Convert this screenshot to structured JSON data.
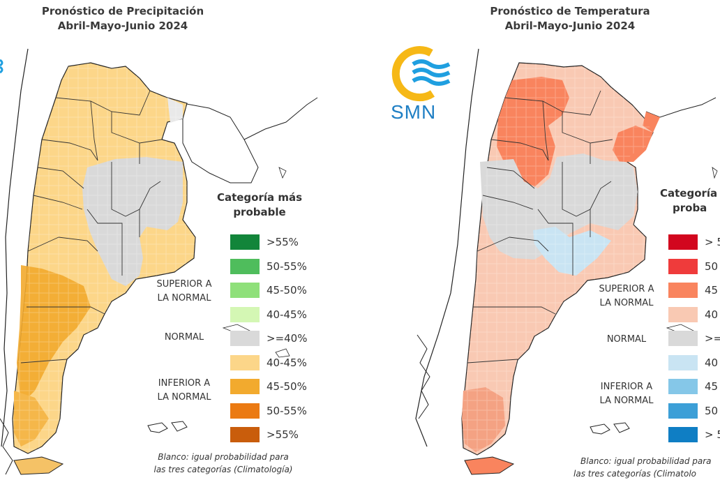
{
  "precipitation": {
    "title_line1": "Pronóstico de Precipitación",
    "title_line2": "Abril-Mayo-Junio 2024",
    "legend": {
      "heading_line1": "Categoría más",
      "heading_line2": "probable",
      "items": [
        {
          "label": ">55%",
          "color": "#12853a"
        },
        {
          "label": "50-55%",
          "color": "#4fbd5c"
        },
        {
          "label": "45-50%",
          "color": "#8fe07a"
        },
        {
          "label": "40-45%",
          "color": "#d4f7b4"
        },
        {
          "label": ">=40%",
          "color": "#d9d9d9"
        },
        {
          "label": "40-45%",
          "color": "#fcd689"
        },
        {
          "label": "45-50%",
          "color": "#f2aa2e"
        },
        {
          "label": "50-55%",
          "color": "#eb7a12"
        },
        {
          "label": ">55%",
          "color": "#c95d0c"
        }
      ],
      "above_line1": "SUPERIOR A",
      "above_line2": "LA NORMAL",
      "normal": "NORMAL",
      "below_line1": "INFERIOR A",
      "below_line2": "LA NORMAL"
    },
    "note_line1": "Blanco: igual probabilidad para",
    "note_line2": "las tres categorías (Climatología)"
  },
  "temperature": {
    "title_line1": "Pronóstico de Temperatura",
    "title_line2": "Abril-Mayo-Junio 2024",
    "logo_text": "SMN",
    "legend": {
      "heading_line1": "Categoría",
      "heading_line2": "proba",
      "items": [
        {
          "label": "> 5",
          "color": "#d2061e"
        },
        {
          "label": "50",
          "color": "#ef3b3b"
        },
        {
          "label": "45",
          "color": "#f9845e"
        },
        {
          "label": "40",
          "color": "#f9c9b3"
        },
        {
          "label": ">=",
          "color": "#d9d9d9"
        },
        {
          "label": "40",
          "color": "#c9e4f3"
        },
        {
          "label": "45",
          "color": "#85c7e8"
        },
        {
          "label": "50",
          "color": "#3c9fd7"
        },
        {
          "label": "> 5",
          "color": "#0f7ec4"
        }
      ],
      "above_line1": "SUPERIOR A",
      "above_line2": "LA NORMAL",
      "normal": "NORMAL",
      "below_line1": "INFERIOR A",
      "below_line2": "LA NORMAL"
    },
    "note_line1": "Blanco: igual probabilidad para",
    "note_line2": "las tres categorías (Climatolo"
  }
}
